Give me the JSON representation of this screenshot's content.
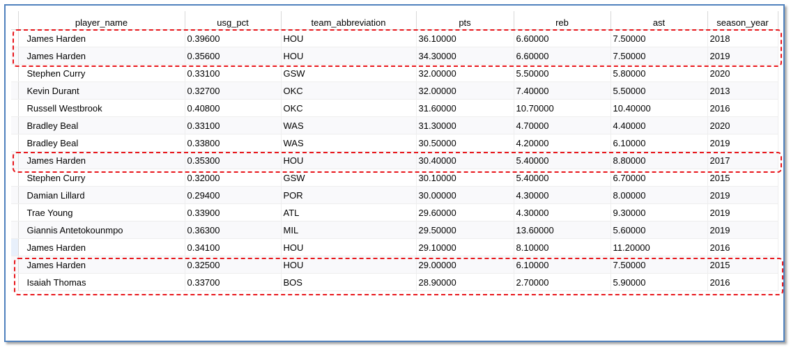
{
  "columns": [
    "player_name",
    "usg_pct",
    "team_abbreviation",
    "pts",
    "reb",
    "ast",
    "season_year"
  ],
  "rows": [
    [
      "James Harden",
      "0.39600",
      "HOU",
      "36.10000",
      "6.60000",
      "7.50000",
      "2018"
    ],
    [
      "James Harden",
      "0.35600",
      "HOU",
      "34.30000",
      "6.60000",
      "7.50000",
      "2019"
    ],
    [
      "Stephen Curry",
      "0.33100",
      "GSW",
      "32.00000",
      "5.50000",
      "5.80000",
      "2020"
    ],
    [
      "Kevin Durant",
      "0.32700",
      "OKC",
      "32.00000",
      "7.40000",
      "5.50000",
      "2013"
    ],
    [
      "Russell Westbrook",
      "0.40800",
      "OKC",
      "31.60000",
      "10.70000",
      "10.40000",
      "2016"
    ],
    [
      "Bradley Beal",
      "0.33100",
      "WAS",
      "31.30000",
      "4.70000",
      "4.40000",
      "2020"
    ],
    [
      "Bradley Beal",
      "0.33800",
      "WAS",
      "30.50000",
      "4.20000",
      "6.10000",
      "2019"
    ],
    [
      "James Harden",
      "0.35300",
      "HOU",
      "30.40000",
      "5.40000",
      "8.80000",
      "2017"
    ],
    [
      "Stephen Curry",
      "0.32000",
      "GSW",
      "30.10000",
      "5.40000",
      "6.70000",
      "2015"
    ],
    [
      "Damian Lillard",
      "0.29400",
      "POR",
      "30.00000",
      "4.30000",
      "8.00000",
      "2019"
    ],
    [
      "Trae Young",
      "0.33900",
      "ATL",
      "29.60000",
      "4.30000",
      "9.30000",
      "2019"
    ],
    [
      "Giannis Antetokounmpo",
      "0.36300",
      "MIL",
      "29.50000",
      "13.60000",
      "5.60000",
      "2019"
    ],
    [
      "James Harden",
      "0.34100",
      "HOU",
      "29.10000",
      "8.10000",
      "11.20000",
      "2016"
    ],
    [
      "James Harden",
      "0.32500",
      "HOU",
      "29.00000",
      "6.10000",
      "7.50000",
      "2015"
    ],
    [
      "Isaiah Thomas",
      "0.33700",
      "BOS",
      "28.90000",
      "2.70000",
      "5.90000",
      "2016"
    ]
  ],
  "highlight_color": "#e8161b",
  "frame_color": "#4f81bd"
}
